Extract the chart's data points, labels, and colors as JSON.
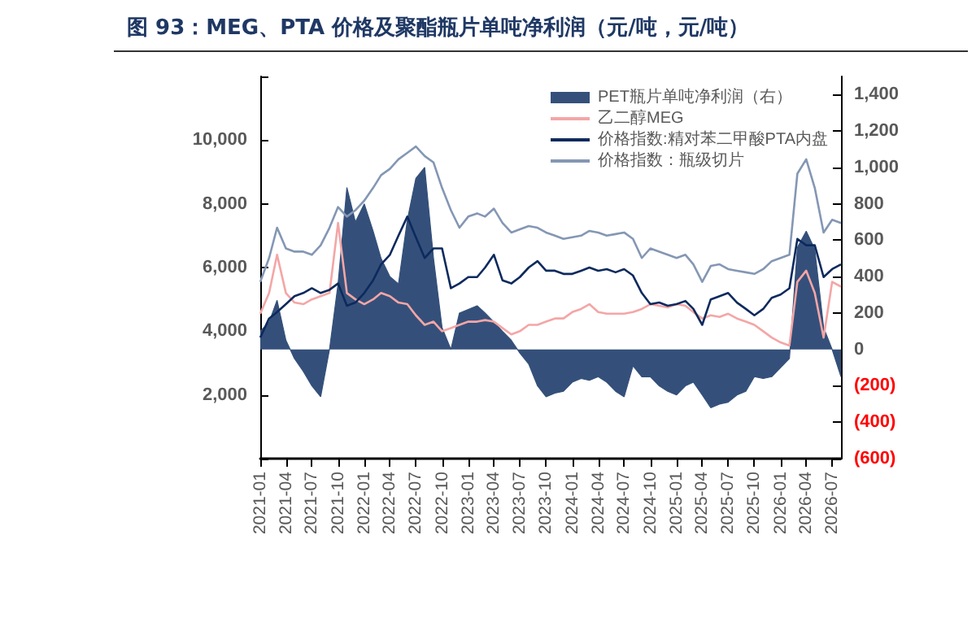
{
  "chart_data": {
    "type": "line",
    "title": "图 93：MEG、PTA 价格及聚酯瓶片单吨净利润（元/吨，元/吨）",
    "x": [
      "2021-01",
      "2021-02",
      "2021-03",
      "2021-04",
      "2021-05",
      "2021-06",
      "2021-07",
      "2021-08",
      "2021-09",
      "2021-10",
      "2021-11",
      "2021-12",
      "2022-01",
      "2022-02",
      "2022-03",
      "2022-04",
      "2022-05",
      "2022-06",
      "2022-07",
      "2022-08",
      "2022-09",
      "2022-10",
      "2022-11",
      "2022-12",
      "2023-01",
      "2023-02",
      "2023-03",
      "2023-04",
      "2023-05",
      "2023-06",
      "2023-07",
      "2023-08",
      "2023-09",
      "2023-10",
      "2023-11",
      "2023-12",
      "2024-01",
      "2024-02",
      "2024-03",
      "2024-04",
      "2024-05",
      "2024-06",
      "2024-07",
      "2024-08",
      "2024-09",
      "2024-10",
      "2024-11",
      "2024-12",
      "2025-01",
      "2025-02",
      "2025-03",
      "2025-04",
      "2025-05",
      "2025-06",
      "2025-07",
      "2025-08",
      "2025-09",
      "2025-10",
      "2025-11",
      "2025-12",
      "2026-01",
      "2026-02",
      "2026-03",
      "2026-04",
      "2026-05",
      "2026-06",
      "2026-07",
      "2026-08"
    ],
    "series": [
      {
        "name": "PET瓶片单吨净利润（右）",
        "type": "area",
        "axis": "y2",
        "color": "#34507a",
        "values": [
          100,
          150,
          270,
          50,
          -50,
          -120,
          -200,
          -260,
          0,
          360,
          890,
          700,
          800,
          650,
          500,
          400,
          360,
          710,
          940,
          1000,
          500,
          120,
          0,
          200,
          220,
          240,
          200,
          150,
          100,
          50,
          -20,
          -80,
          -200,
          -260,
          -240,
          -230,
          -180,
          -160,
          -170,
          -150,
          -180,
          -230,
          -260,
          -90,
          -150,
          -150,
          -200,
          -230,
          -250,
          -200,
          -180,
          -250,
          -320,
          -300,
          -290,
          -250,
          -230,
          -150,
          -160,
          -150,
          -100,
          -50,
          560,
          650,
          550,
          120,
          0,
          -150
        ]
      },
      {
        "name": "乙二醇MEG",
        "color": "#f4a6a6",
        "values": [
          4550,
          5200,
          6400,
          5200,
          4900,
          4850,
          5000,
          5100,
          5200,
          7400,
          5200,
          5000,
          4850,
          5000,
          5200,
          5100,
          4900,
          4850,
          4500,
          4200,
          4300,
          4000,
          4100,
          4200,
          4300,
          4300,
          4350,
          4300,
          4100,
          3900,
          4000,
          4200,
          4200,
          4300,
          4400,
          4400,
          4600,
          4700,
          4850,
          4600,
          4550,
          4550,
          4550,
          4600,
          4700,
          4850,
          4800,
          4750,
          4850,
          4800,
          4600,
          4400,
          4500,
          4450,
          4550,
          4400,
          4300,
          4200,
          4000,
          3800,
          3650,
          3550,
          5550,
          5900,
          5200,
          3800,
          5550,
          5400
        ]
      },
      {
        "name": "价格指数:精对苯二甲酸PTA内盘",
        "color": "#0d2a5e",
        "values": [
          3800,
          4400,
          4600,
          4850,
          5100,
          5200,
          5350,
          5200,
          5300,
          5500,
          4800,
          4900,
          5200,
          5600,
          6100,
          6400,
          7000,
          7600,
          6950,
          6300,
          6600,
          6600,
          5350,
          5500,
          5700,
          5700,
          6000,
          6400,
          5600,
          5500,
          5700,
          6000,
          6200,
          5900,
          5900,
          5800,
          5800,
          5900,
          6000,
          5900,
          5950,
          5850,
          5950,
          5750,
          5200,
          4850,
          4900,
          4800,
          4850,
          4950,
          4700,
          4200,
          5000,
          5100,
          5200,
          4900,
          4700,
          4500,
          4700,
          5050,
          5150,
          5350,
          6900,
          6700,
          6700,
          5700,
          5950,
          6100
        ]
      },
      {
        "name": "价格指数：瓶级切片",
        "color": "#8497b4",
        "values": [
          5550,
          6300,
          7250,
          6600,
          6500,
          6500,
          6400,
          6700,
          7250,
          7900,
          7600,
          7800,
          8100,
          8500,
          8900,
          9100,
          9400,
          9600,
          9800,
          9500,
          9300,
          8500,
          7800,
          7250,
          7600,
          7700,
          7600,
          7850,
          7400,
          7100,
          7200,
          7300,
          7250,
          7100,
          7000,
          6900,
          6950,
          7000,
          7150,
          7100,
          7000,
          7050,
          7100,
          6900,
          6300,
          6600,
          6500,
          6400,
          6300,
          6400,
          6100,
          5550,
          6050,
          6100,
          5950,
          5900,
          5850,
          5800,
          5950,
          6200,
          6300,
          6400,
          8950,
          9400,
          8500,
          7100,
          7500,
          7400
        ]
      }
    ],
    "xlim": [
      "2021-01",
      "2026-08"
    ],
    "xticks": [
      "2021-01",
      "2021-04",
      "2021-07",
      "2021-10",
      "2022-01",
      "2022-04",
      "2022-07",
      "2022-10",
      "2023-01",
      "2023-04",
      "2023-07",
      "2023-10",
      "2024-01",
      "2024-04",
      "2024-07",
      "2024-10",
      "2025-01",
      "2025-04",
      "2025-07",
      "2025-10",
      "2026-01",
      "2026-04",
      "2026-07"
    ],
    "ylim": [
      0,
      12000
    ],
    "yticks": [
      {
        "value": 0,
        "label": null
      },
      {
        "value": 2000,
        "label": "2,000"
      },
      {
        "value": 4000,
        "label": "4,000"
      },
      {
        "value": 6000,
        "label": "6,000"
      },
      {
        "value": 8000,
        "label": "8,000"
      },
      {
        "value": 10000,
        "label": "10,000"
      },
      {
        "value": 12000,
        "label": null
      }
    ],
    "y2lim": [
      -600,
      1500
    ],
    "y2ticks": [
      {
        "value": -600,
        "label": "(600)"
      },
      {
        "value": -400,
        "label": "(400)"
      },
      {
        "value": -200,
        "label": "(200)"
      },
      0,
      {
        "value": 200,
        "label": "200"
      },
      {
        "value": 400,
        "label": "400"
      },
      {
        "value": 600,
        "label": "600"
      },
      {
        "value": 800,
        "label": "800"
      },
      {
        "value": 1000,
        "label": "1,000"
      },
      {
        "value": 1200,
        "label": "1,200"
      },
      {
        "value": 1400,
        "label": "1,400"
      }
    ],
    "legend": "top right",
    "grid": false,
    "marker": "none",
    "line_style": "solid"
  }
}
